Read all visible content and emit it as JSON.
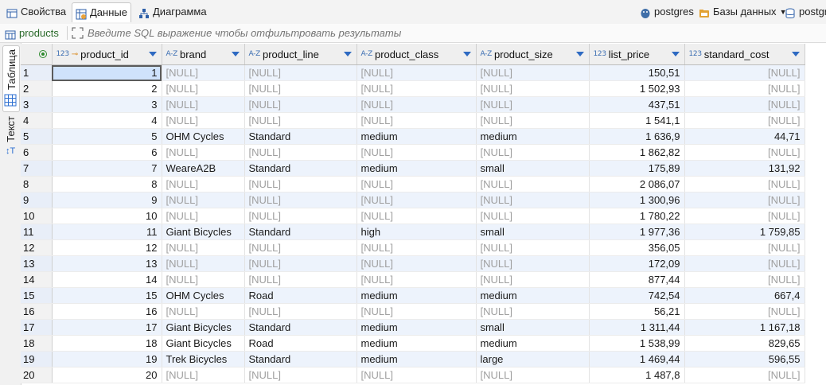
{
  "tabs": {
    "properties": "Свойства",
    "data": "Данные",
    "diagram": "Диаграмма"
  },
  "right": {
    "connection": "postgres",
    "databases": "Базы данных",
    "schema": "postgr"
  },
  "filter": {
    "table_name": "products",
    "placeholder": "Введите SQL выражение чтобы отфильтровать результаты"
  },
  "side_tabs": {
    "table": "Таблица",
    "text": "Текст"
  },
  "columns": [
    {
      "type": "123",
      "name": "product_id",
      "key": true
    },
    {
      "type": "A-Z",
      "name": "brand"
    },
    {
      "type": "A-Z",
      "name": "product_line"
    },
    {
      "type": "A-Z",
      "name": "product_class"
    },
    {
      "type": "A-Z",
      "name": "product_size"
    },
    {
      "type": "123",
      "name": "list_price"
    },
    {
      "type": "123",
      "name": "standard_cost"
    }
  ],
  "rows": [
    [
      "1",
      "1",
      "[NULL]",
      "[NULL]",
      "[NULL]",
      "[NULL]",
      "150,51",
      "[NULL]"
    ],
    [
      "2",
      "2",
      "[NULL]",
      "[NULL]",
      "[NULL]",
      "[NULL]",
      "1 502,93",
      "[NULL]"
    ],
    [
      "3",
      "3",
      "[NULL]",
      "[NULL]",
      "[NULL]",
      "[NULL]",
      "437,51",
      "[NULL]"
    ],
    [
      "4",
      "4",
      "[NULL]",
      "[NULL]",
      "[NULL]",
      "[NULL]",
      "1 541,1",
      "[NULL]"
    ],
    [
      "5",
      "5",
      "OHM Cycles",
      "Standard",
      "medium",
      "medium",
      "1 636,9",
      "44,71"
    ],
    [
      "6",
      "6",
      "[NULL]",
      "[NULL]",
      "[NULL]",
      "[NULL]",
      "1 862,82",
      "[NULL]"
    ],
    [
      "7",
      "7",
      "WeareA2B",
      "Standard",
      "medium",
      "small",
      "175,89",
      "131,92"
    ],
    [
      "8",
      "8",
      "[NULL]",
      "[NULL]",
      "[NULL]",
      "[NULL]",
      "2 086,07",
      "[NULL]"
    ],
    [
      "9",
      "9",
      "[NULL]",
      "[NULL]",
      "[NULL]",
      "[NULL]",
      "1 300,96",
      "[NULL]"
    ],
    [
      "10",
      "10",
      "[NULL]",
      "[NULL]",
      "[NULL]",
      "[NULL]",
      "1 780,22",
      "[NULL]"
    ],
    [
      "11",
      "11",
      "Giant Bicycles",
      "Standard",
      "high",
      "small",
      "1 977,36",
      "1 759,85"
    ],
    [
      "12",
      "12",
      "[NULL]",
      "[NULL]",
      "[NULL]",
      "[NULL]",
      "356,05",
      "[NULL]"
    ],
    [
      "13",
      "13",
      "[NULL]",
      "[NULL]",
      "[NULL]",
      "[NULL]",
      "172,09",
      "[NULL]"
    ],
    [
      "14",
      "14",
      "[NULL]",
      "[NULL]",
      "[NULL]",
      "[NULL]",
      "877,44",
      "[NULL]"
    ],
    [
      "15",
      "15",
      "OHM Cycles",
      "Road",
      "medium",
      "medium",
      "742,54",
      "667,4"
    ],
    [
      "16",
      "16",
      "[NULL]",
      "[NULL]",
      "[NULL]",
      "[NULL]",
      "56,21",
      "[NULL]"
    ],
    [
      "17",
      "17",
      "Giant Bicycles",
      "Standard",
      "medium",
      "small",
      "1 311,44",
      "1 167,18"
    ],
    [
      "18",
      "18",
      "Giant Bicycles",
      "Road",
      "medium",
      "medium",
      "1 538,99",
      "829,65"
    ],
    [
      "19",
      "19",
      "Trek Bicycles",
      "Standard",
      "medium",
      "large",
      "1 469,44",
      "596,55"
    ],
    [
      "20",
      "20",
      "[NULL]",
      "[NULL]",
      "[NULL]",
      "[NULL]",
      "1 487,8",
      "[NULL]"
    ]
  ]
}
